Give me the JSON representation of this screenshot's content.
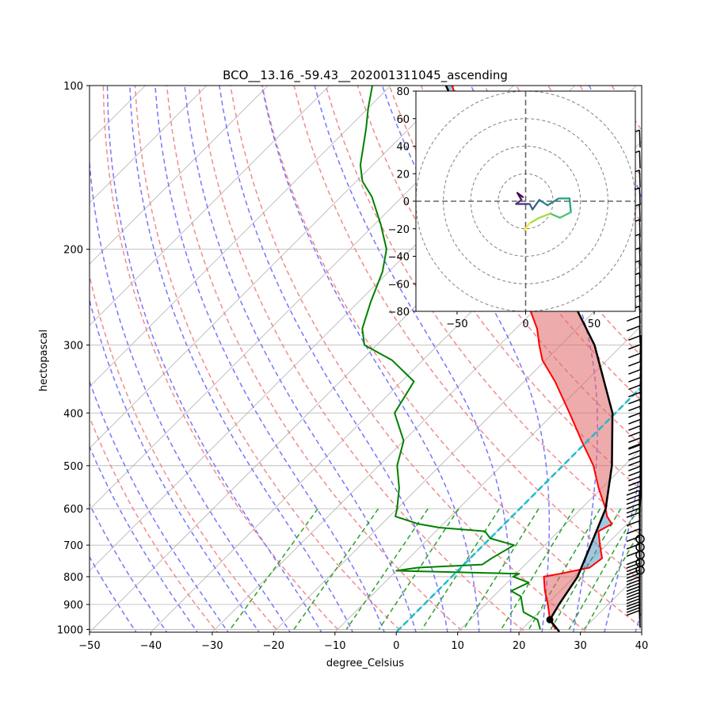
{
  "chart_data": {
    "type": "skew-t",
    "title": "BCO__13.16_-59.43__202001311045_ascending",
    "xlabel": "degree_Celsius",
    "ylabel": "hectopascal",
    "xlim": [
      -50,
      40
    ],
    "ylim": [
      1000,
      100
    ],
    "x_ticks": [
      "−50",
      "−40",
      "−30",
      "−20",
      "−10",
      "0",
      "10",
      "20",
      "30",
      "40"
    ],
    "x_tick_values": [
      -50,
      -40,
      -30,
      -20,
      -10,
      0,
      10,
      20,
      30,
      40
    ],
    "p_ticks": [
      "100",
      "200",
      "300",
      "400",
      "500",
      "600",
      "700",
      "800",
      "900",
      "1000"
    ],
    "p_tick_values": [
      100,
      200,
      300,
      400,
      500,
      600,
      700,
      800,
      900,
      1000
    ],
    "colors": {
      "temperature": "#ff0000",
      "dewpoint": "#008000",
      "parcel": "#000000",
      "cape": "#e06666",
      "cin": "#4a90c4",
      "dry_adiabat": "#f08080",
      "moist_adiabat": "#7777ff",
      "mixing_ratio": "#2ca02c",
      "isotherm_0": "#17becf",
      "hodograph_grid": "#808080"
    },
    "temperature_profile": [
      [
        1000,
        25.5
      ],
      [
        960,
        23.0
      ],
      [
        900,
        20.2
      ],
      [
        850,
        17.5
      ],
      [
        800,
        15.0
      ],
      [
        790,
        17.2
      ],
      [
        770,
        21.0
      ],
      [
        740,
        21.5
      ],
      [
        700,
        19.0
      ],
      [
        660,
        16.5
      ],
      [
        640,
        17.5
      ],
      [
        620,
        15.5
      ],
      [
        600,
        14.0
      ],
      [
        550,
        9.5
      ],
      [
        500,
        5.0
      ],
      [
        450,
        -1.0
      ],
      [
        400,
        -7.5
      ],
      [
        350,
        -15.0
      ],
      [
        320,
        -20.5
      ],
      [
        300,
        -23.5
      ],
      [
        280,
        -26.5
      ],
      [
        250,
        -32.5
      ],
      [
        220,
        -39.5
      ],
      [
        200,
        -44.0
      ],
      [
        180,
        -50.0
      ],
      [
        160,
        -56.5
      ],
      [
        150,
        -60.0
      ],
      [
        130,
        -67.5
      ],
      [
        115,
        -73.5
      ],
      [
        105,
        -77.5
      ],
      [
        100,
        -80.0
      ]
    ],
    "dewpoint_profile": [
      [
        1000,
        23.0
      ],
      [
        960,
        21.0
      ],
      [
        930,
        17.5
      ],
      [
        900,
        16.0
      ],
      [
        870,
        14.5
      ],
      [
        850,
        12.0
      ],
      [
        820,
        13.5
      ],
      [
        800,
        10.0
      ],
      [
        790,
        10.5
      ],
      [
        780,
        -10.0
      ],
      [
        770,
        -7.0
      ],
      [
        760,
        3.0
      ],
      [
        740,
        3.5
      ],
      [
        700,
        5.0
      ],
      [
        680,
        0.0
      ],
      [
        660,
        -2.0
      ],
      [
        650,
        -10.0
      ],
      [
        640,
        -14.0
      ],
      [
        620,
        -19.0
      ],
      [
        600,
        -20.0
      ],
      [
        550,
        -23.0
      ],
      [
        500,
        -27.0
      ],
      [
        450,
        -30.0
      ],
      [
        400,
        -36.0
      ],
      [
        350,
        -38.0
      ],
      [
        320,
        -45.0
      ],
      [
        300,
        -52.0
      ],
      [
        280,
        -55.0
      ],
      [
        250,
        -58.0
      ],
      [
        220,
        -61.0
      ],
      [
        200,
        -64.0
      ],
      [
        180,
        -69.0
      ],
      [
        160,
        -75.0
      ],
      [
        150,
        -79.0
      ],
      [
        140,
        -82.0
      ],
      [
        120,
        -87.0
      ],
      [
        110,
        -90.0
      ],
      [
        100,
        -93.0
      ]
    ],
    "parcel_profile": [
      [
        1010,
        26.5
      ],
      [
        960,
        23.0
      ],
      [
        900,
        22.0
      ],
      [
        800,
        20.5
      ],
      [
        700,
        17.5
      ],
      [
        600,
        14.0
      ],
      [
        500,
        8.0
      ],
      [
        400,
        -0.5
      ],
      [
        300,
        -14.5
      ],
      [
        250,
        -25.0
      ],
      [
        200,
        -39.0
      ],
      [
        175,
        -47.5
      ],
      [
        150,
        -57.5
      ],
      [
        125,
        -68.5
      ],
      [
        100,
        -81.0
      ]
    ],
    "lcl": {
      "pressure": 960,
      "temperature": 23.0
    },
    "isotherm_0c": {
      "temperature": 0
    },
    "hodograph": {
      "xlim": [
        -80,
        80
      ],
      "ylim": [
        -80,
        80
      ],
      "x_ticks": [
        "−50",
        "0",
        "50"
      ],
      "y_ticks": [
        "80",
        "60",
        "40",
        "20",
        "0",
        "−20",
        "−40",
        "−60",
        "−80"
      ],
      "rings": [
        20,
        40,
        60,
        80
      ],
      "trace": [
        [
          -2,
          3
        ],
        [
          -6,
          6
        ],
        [
          -3,
          1
        ],
        [
          -7,
          -2
        ],
        [
          3,
          -2
        ],
        [
          5,
          -6
        ],
        [
          10,
          1
        ],
        [
          16,
          -3
        ],
        [
          24,
          2
        ],
        [
          32,
          2
        ],
        [
          33,
          -8
        ],
        [
          25,
          -12
        ],
        [
          18,
          -9
        ],
        [
          10,
          -12
        ],
        [
          3,
          -16
        ],
        [
          -1,
          -21
        ]
      ]
    },
    "wind_barbs": "right-edge column, 100–1000 hPa"
  }
}
